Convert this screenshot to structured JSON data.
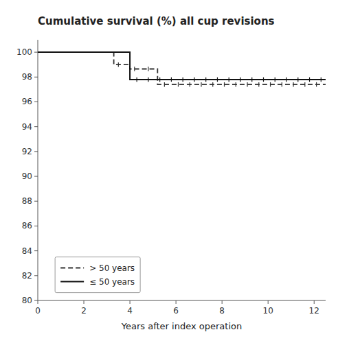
{
  "chart_data": {
    "type": "step",
    "title": "Cumulative survival (%) all cup revisions",
    "xlabel": "Years after index operation",
    "xlim": [
      0,
      12.5
    ],
    "ylim": [
      80,
      101
    ],
    "xticks": [
      0,
      2,
      4,
      6,
      8,
      10,
      12
    ],
    "yticks": [
      80,
      82,
      84,
      86,
      88,
      90,
      92,
      94,
      96,
      98,
      100
    ],
    "grid": false,
    "legend": "lower left",
    "series": [
      {
        "name": "> 50 years",
        "color": "#333333",
        "line_style": "dashed",
        "x": [
          0,
          3.3,
          3.3,
          4.0,
          4.0,
          5.2,
          5.2,
          12.5
        ],
        "values": [
          100,
          100,
          99.0,
          99.0,
          98.65,
          98.65,
          97.4,
          97.4
        ],
        "censored_x": [
          3.5,
          4.2,
          4.8,
          5.5,
          6.1,
          6.6,
          7.1,
          7.6,
          8.1,
          8.6,
          9.1,
          9.6,
          10.1,
          10.6,
          11.1,
          11.6,
          12.1
        ],
        "censored_values": [
          99.0,
          98.65,
          98.65,
          97.4,
          97.4,
          97.4,
          97.4,
          97.4,
          97.4,
          97.4,
          97.4,
          97.4,
          97.4,
          97.4,
          97.4,
          97.4,
          97.4
        ]
      },
      {
        "name": "≤ 50 years",
        "color": "#111111",
        "line_style": "solid",
        "x": [
          0,
          4.0,
          4.0,
          12.5
        ],
        "values": [
          100,
          100,
          97.8,
          97.8
        ],
        "censored_x": [
          4.3,
          4.8,
          5.3,
          5.8,
          6.3,
          6.8,
          7.3,
          7.8,
          8.3,
          8.8,
          9.3,
          9.8,
          10.3,
          10.8,
          11.3,
          11.8,
          12.3
        ],
        "censored_values": [
          97.8,
          97.8,
          97.8,
          97.8,
          97.8,
          97.8,
          97.8,
          97.8,
          97.8,
          97.8,
          97.8,
          97.8,
          97.8,
          97.8,
          97.8,
          97.8,
          97.8
        ]
      }
    ]
  }
}
